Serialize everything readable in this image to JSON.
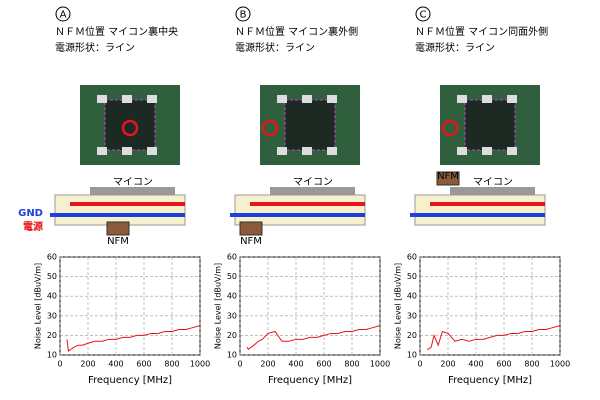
{
  "panels": [
    {
      "label": "A",
      "title": "ＮＦＭ位置 マイコン裏中央",
      "subtitle": "電源形状：ライン",
      "chip": "マイコン",
      "filter": "NFM",
      "gnd": "GND",
      "power": "電源"
    },
    {
      "label": "B",
      "title": "ＮＦＭ位置 マイコン裏外側",
      "subtitle": "電源形状：ライン",
      "chip": "マイコン",
      "filter": "NFM"
    },
    {
      "label": "C",
      "title": "ＮＦＭ位置 マイコン同面外側",
      "subtitle": "電源形状：ライン",
      "chip": "マイコン",
      "filter": "NFM"
    }
  ],
  "chart_data": [
    {
      "type": "line",
      "xlabel": "Frequency [MHz]",
      "ylabel": "Noise Level [dBuV/m]",
      "x": [
        50,
        60,
        80,
        100,
        130,
        160,
        200,
        250,
        300,
        350,
        400,
        450,
        500,
        550,
        600,
        650,
        700,
        750,
        800,
        850,
        900,
        950,
        1000
      ],
      "values": [
        18,
        12,
        13,
        14,
        15,
        15,
        16,
        17,
        17,
        18,
        18,
        19,
        19,
        20,
        20,
        21,
        21,
        22,
        22,
        23,
        23,
        24,
        25
      ],
      "color": "#e8141c",
      "xlim": [
        0,
        1000
      ],
      "ylim": [
        10,
        60
      ],
      "xticks": [
        0,
        200,
        400,
        600,
        800,
        1000
      ],
      "yticks": [
        10,
        20,
        30,
        40,
        50,
        60
      ],
      "grid": true
    },
    {
      "type": "line",
      "xlabel": "Frequency [MHz]",
      "ylabel": "Noise Level [dBuV/m]",
      "x": [
        50,
        60,
        80,
        100,
        130,
        160,
        200,
        250,
        300,
        350,
        400,
        450,
        500,
        550,
        600,
        650,
        700,
        750,
        800,
        850,
        900,
        950,
        1000
      ],
      "values": [
        14,
        13,
        14,
        15,
        17,
        18,
        21,
        22,
        17,
        17,
        18,
        18,
        19,
        19,
        20,
        21,
        21,
        22,
        22,
        23,
        23,
        24,
        25
      ],
      "color": "#e8141c",
      "xlim": [
        0,
        1000
      ],
      "ylim": [
        10,
        60
      ],
      "xticks": [
        0,
        200,
        400,
        600,
        800,
        1000
      ],
      "yticks": [
        10,
        20,
        30,
        40,
        50,
        60
      ],
      "grid": true
    },
    {
      "type": "line",
      "xlabel": "Frequency [MHz]",
      "ylabel": "Noise Level [dBuV/m]",
      "x": [
        50,
        60,
        80,
        100,
        130,
        160,
        200,
        250,
        300,
        350,
        400,
        450,
        500,
        550,
        600,
        650,
        700,
        750,
        800,
        850,
        900,
        950,
        1000
      ],
      "values": [
        13,
        13,
        14,
        20,
        15,
        22,
        21,
        17,
        18,
        17,
        18,
        18,
        19,
        20,
        20,
        21,
        21,
        22,
        22,
        23,
        23,
        24,
        25
      ],
      "color": "#e8141c",
      "xlim": [
        0,
        1000
      ],
      "ylim": [
        10,
        60
      ],
      "xticks": [
        0,
        200,
        400,
        600,
        800,
        1000
      ],
      "yticks": [
        10,
        20,
        30,
        40,
        50,
        60
      ],
      "grid": true
    }
  ]
}
